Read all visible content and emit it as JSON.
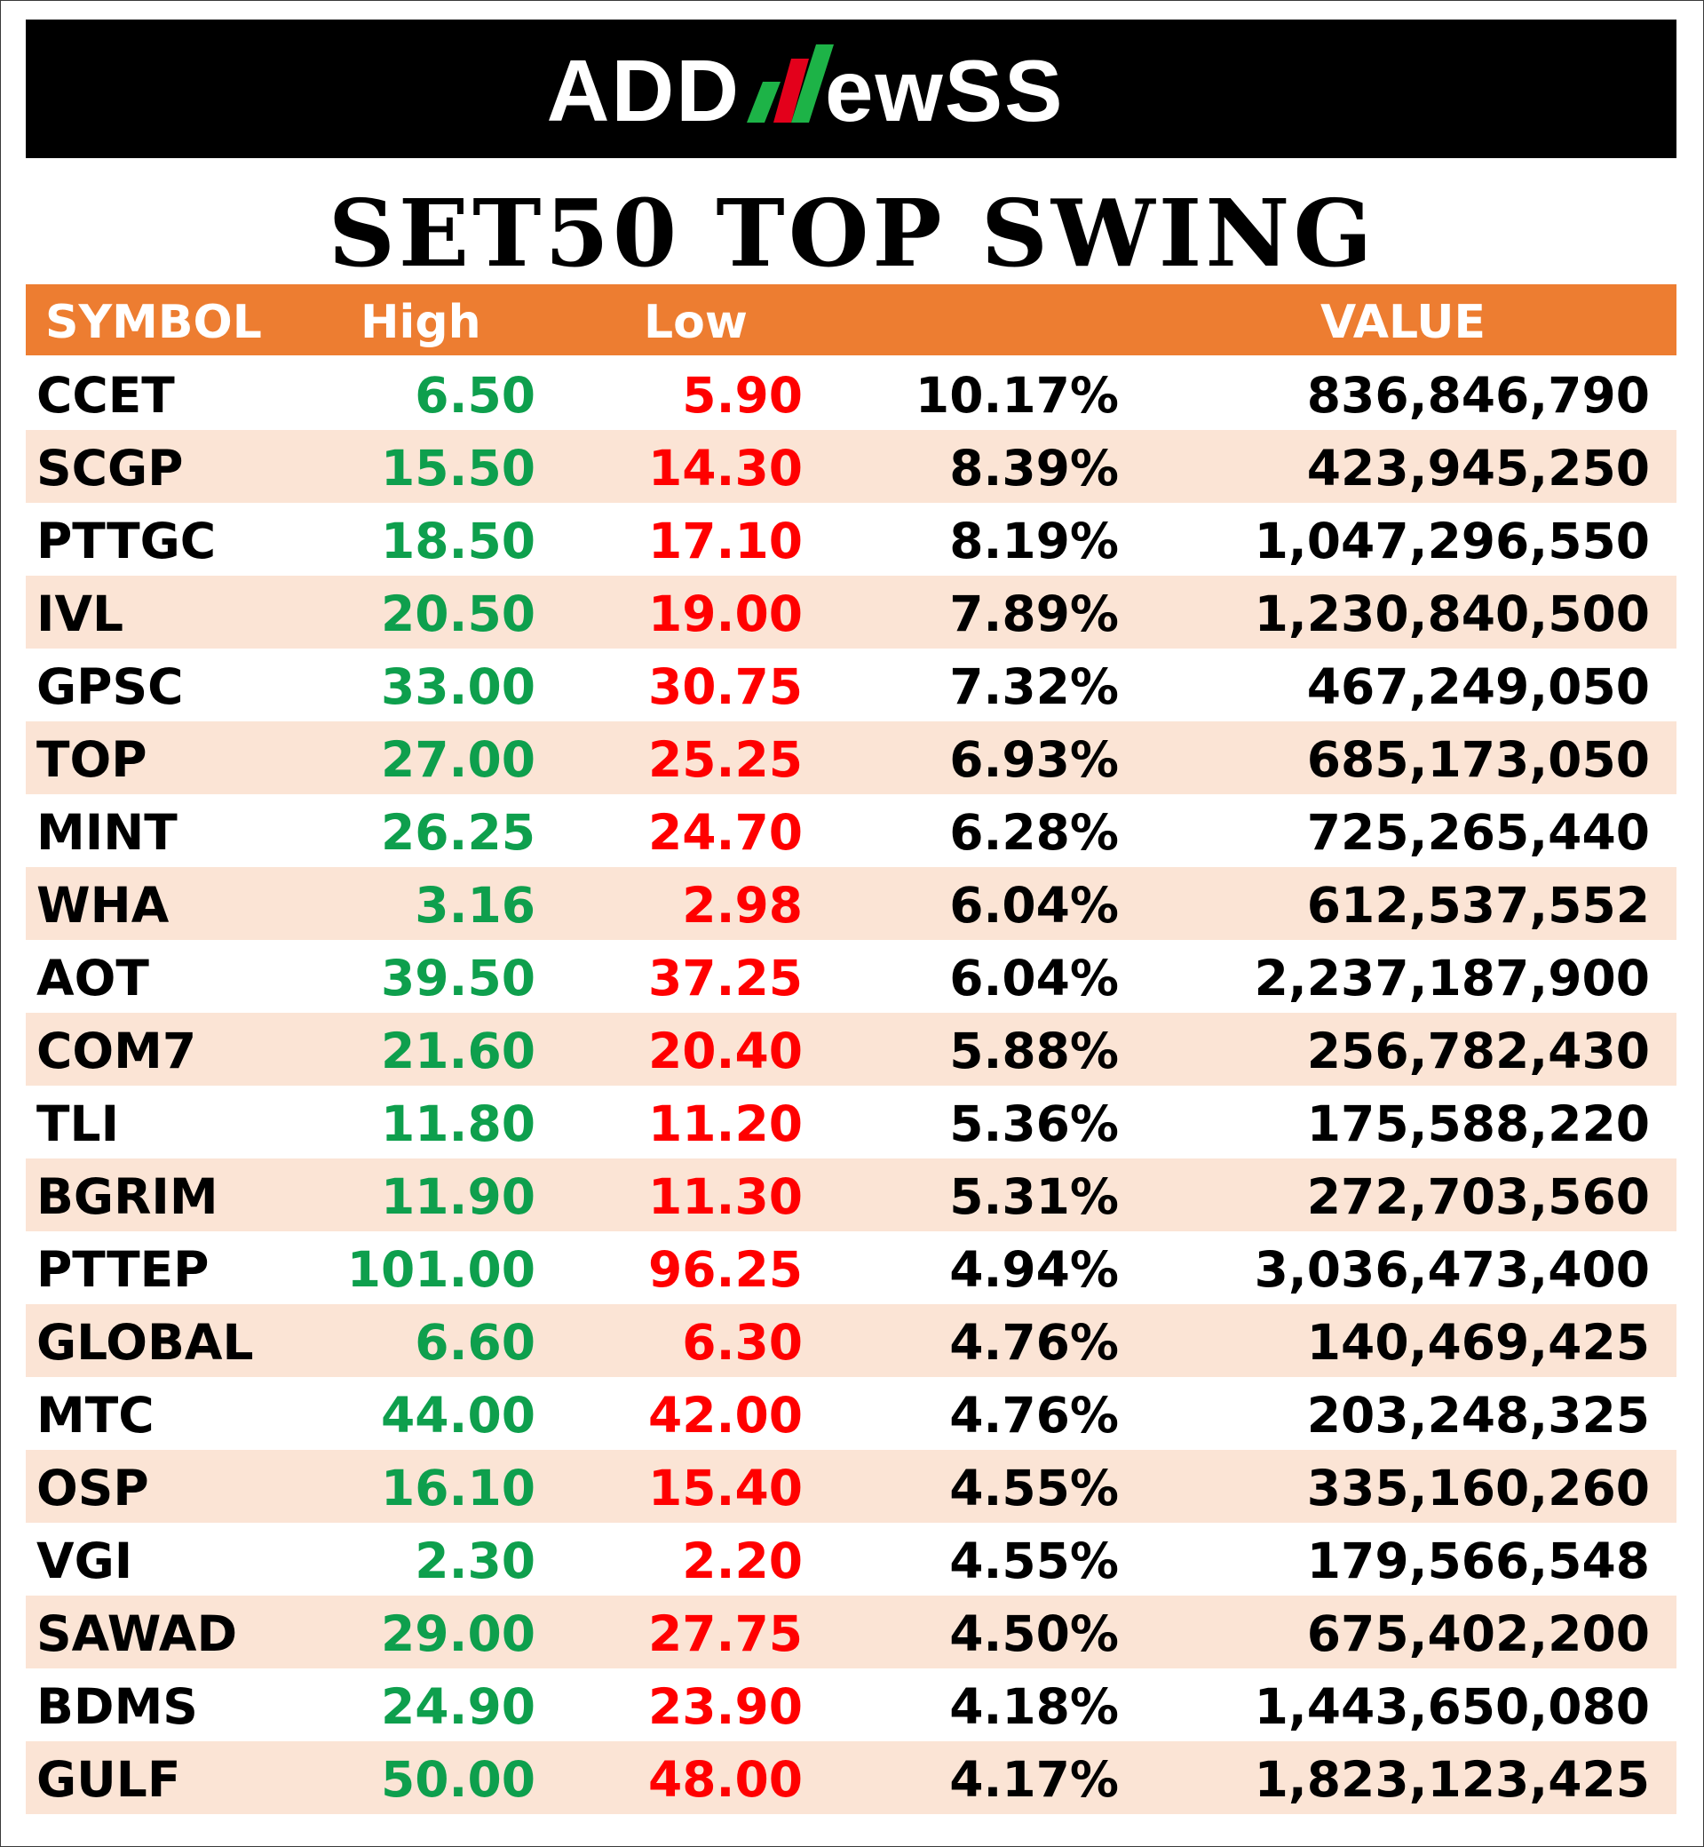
{
  "brand": {
    "logo_left": "ADD",
    "logo_right": "ewSS",
    "colors": {
      "banner": "#000000",
      "logo_text": "#ffffff",
      "n_green": "#1db347",
      "n_red": "#e3001b"
    }
  },
  "title": "SET50 TOP SWING",
  "colors": {
    "header_bg": "#ed7d31",
    "row_alt_bg": "#fbe4d5",
    "high": "#0e9f4d",
    "low": "#ff0000"
  },
  "table": {
    "headers": {
      "symbol": "SYMBOL",
      "high": "High",
      "low": "Low",
      "pct": "",
      "value": "VALUE"
    },
    "rows": [
      {
        "symbol": "CCET",
        "high": "6.50",
        "low": "5.90",
        "pct": "10.17%",
        "value": "836,846,790"
      },
      {
        "symbol": "SCGP",
        "high": "15.50",
        "low": "14.30",
        "pct": "8.39%",
        "value": "423,945,250"
      },
      {
        "symbol": "PTTGC",
        "high": "18.50",
        "low": "17.10",
        "pct": "8.19%",
        "value": "1,047,296,550"
      },
      {
        "symbol": "IVL",
        "high": "20.50",
        "low": "19.00",
        "pct": "7.89%",
        "value": "1,230,840,500"
      },
      {
        "symbol": "GPSC",
        "high": "33.00",
        "low": "30.75",
        "pct": "7.32%",
        "value": "467,249,050"
      },
      {
        "symbol": "TOP",
        "high": "27.00",
        "low": "25.25",
        "pct": "6.93%",
        "value": "685,173,050"
      },
      {
        "symbol": "MINT",
        "high": "26.25",
        "low": "24.70",
        "pct": "6.28%",
        "value": "725,265,440"
      },
      {
        "symbol": "WHA",
        "high": "3.16",
        "low": "2.98",
        "pct": "6.04%",
        "value": "612,537,552"
      },
      {
        "symbol": "AOT",
        "high": "39.50",
        "low": "37.25",
        "pct": "6.04%",
        "value": "2,237,187,900"
      },
      {
        "symbol": "COM7",
        "high": "21.60",
        "low": "20.40",
        "pct": "5.88%",
        "value": "256,782,430"
      },
      {
        "symbol": "TLI",
        "high": "11.80",
        "low": "11.20",
        "pct": "5.36%",
        "value": "175,588,220"
      },
      {
        "symbol": "BGRIM",
        "high": "11.90",
        "low": "11.30",
        "pct": "5.31%",
        "value": "272,703,560"
      },
      {
        "symbol": "PTTEP",
        "high": "101.00",
        "low": "96.25",
        "pct": "4.94%",
        "value": "3,036,473,400"
      },
      {
        "symbol": "GLOBAL",
        "high": "6.60",
        "low": "6.30",
        "pct": "4.76%",
        "value": "140,469,425"
      },
      {
        "symbol": "MTC",
        "high": "44.00",
        "low": "42.00",
        "pct": "4.76%",
        "value": "203,248,325"
      },
      {
        "symbol": "OSP",
        "high": "16.10",
        "low": "15.40",
        "pct": "4.55%",
        "value": "335,160,260"
      },
      {
        "symbol": "VGI",
        "high": "2.30",
        "low": "2.20",
        "pct": "4.55%",
        "value": "179,566,548"
      },
      {
        "symbol": "SAWAD",
        "high": "29.00",
        "low": "27.75",
        "pct": "4.50%",
        "value": "675,402,200"
      },
      {
        "symbol": "BDMS",
        "high": "24.90",
        "low": "23.90",
        "pct": "4.18%",
        "value": "1,443,650,080"
      },
      {
        "symbol": "GULF",
        "high": "50.00",
        "low": "48.00",
        "pct": "4.17%",
        "value": "1,823,123,425"
      }
    ]
  }
}
